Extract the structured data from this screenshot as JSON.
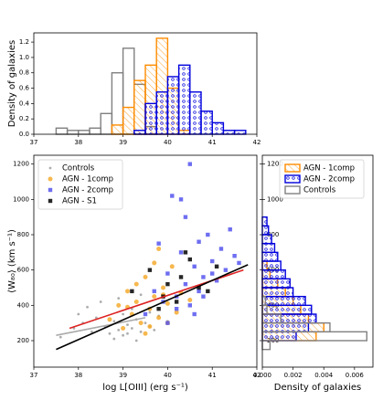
{
  "chart_data": [
    {
      "type": "histogram",
      "orientation": "vertical",
      "ylabel": "Density of galaxies",
      "xlim": [
        37,
        42
      ],
      "xticks": [
        37,
        38,
        39,
        40,
        41,
        42
      ],
      "ylim": [
        0,
        1.32
      ],
      "yticks": [
        {
          "value": 0,
          "label": "0.0"
        },
        0.2,
        0.4,
        0.6,
        0.8,
        {
          "value": 1,
          "label": "1.0"
        },
        1.2
      ],
      "bins": [
        37.5,
        37.75,
        38,
        38.25,
        38.5,
        38.75,
        39,
        39.25,
        39.5,
        39.75,
        40,
        40.25,
        40.5,
        40.75,
        41,
        41.25,
        41.5,
        41.75
      ],
      "series": [
        {
          "color": "#808080",
          "hatch": "none",
          "values": [
            0.08,
            0.05,
            0.05,
            0.08,
            0.27,
            0.8,
            1.12,
            0.65,
            0.1,
            0,
            0,
            0,
            0,
            0,
            0,
            0,
            0
          ]
        },
        {
          "color": "#ff8c00",
          "hatch": "//",
          "values": [
            0,
            0,
            0,
            0,
            0,
            0.12,
            0.35,
            0.7,
            0.9,
            1.25,
            0.6,
            0.05,
            0,
            0,
            0,
            0,
            0
          ]
        },
        {
          "color": "#0000dd",
          "hatch": "o",
          "values": [
            0,
            0,
            0,
            0,
            0,
            0,
            0,
            0.05,
            0.4,
            0.55,
            0.75,
            0.9,
            0.55,
            0.3,
            0.15,
            0.05,
            0.05
          ]
        }
      ]
    },
    {
      "type": "scatter",
      "xlabel": "log L[OIII] (erg s⁻¹)",
      "ylabel": "⟨W₈₀⟩ (km s⁻¹)",
      "xlim": [
        37,
        42
      ],
      "xticks": [
        37,
        38,
        39,
        40,
        41,
        42
      ],
      "ylim": [
        50,
        1250
      ],
      "yticks": [
        200,
        400,
        600,
        800,
        1000,
        1200
      ],
      "legend": "upper left",
      "series": [
        {
          "name": "Controls",
          "color": "#999999",
          "marker": "dot",
          "x": [
            37.6,
            37.9,
            38.1,
            38.3,
            38.4,
            38.6,
            38.7,
            38.8,
            38.9,
            39.0,
            39.0,
            39.1,
            39.2,
            39.3,
            39.4,
            39.5,
            39.6,
            39.8,
            38.5,
            38.9,
            39.2,
            39.7,
            38.2,
            39.4,
            38.8,
            39.1,
            39.6,
            38.0,
            39.3,
            40.0
          ],
          "values": [
            220,
            270,
            300,
            250,
            330,
            280,
            240,
            310,
            260,
            230,
            350,
            290,
            270,
            320,
            250,
            300,
            280,
            340,
            420,
            440,
            380,
            260,
            390,
            460,
            210,
            240,
            360,
            350,
            200,
            310
          ]
        },
        {
          "name": "AGN - 1comp",
          "color": "#f5a623",
          "marker": "circle",
          "x": [
            38.7,
            38.9,
            39.0,
            39.1,
            39.2,
            39.3,
            39.4,
            39.5,
            39.6,
            39.7,
            39.8,
            39.9,
            40.0,
            40.1,
            40.2,
            39.5,
            39.8,
            39.3,
            40.3,
            39.6,
            39.1,
            40.0,
            39.7,
            39.9,
            40.5
          ],
          "values": [
            320,
            400,
            270,
            480,
            350,
            420,
            300,
            560,
            380,
            450,
            330,
            500,
            410,
            620,
            360,
            240,
            720,
            520,
            470,
            280,
            390,
            300,
            640,
            460,
            430
          ]
        },
        {
          "name": "AGN - 2comp",
          "color": "#5555ee",
          "marker": "square",
          "x": [
            39.5,
            39.7,
            39.9,
            40.0,
            40.1,
            40.2,
            40.3,
            40.4,
            40.5,
            40.6,
            40.7,
            40.8,
            40.9,
            41.0,
            41.1,
            41.2,
            41.3,
            41.5,
            41.6,
            40.2,
            40.5,
            40.8,
            39.8,
            40.0,
            40.4,
            40.6,
            41.0,
            40.3,
            40.7,
            41.4
          ],
          "values": [
            350,
            480,
            420,
            580,
            1020,
            450,
            700,
            520,
            1200,
            620,
            480,
            560,
            800,
            650,
            540,
            720,
            600,
            680,
            640,
            380,
            400,
            450,
            750,
            300,
            900,
            350,
            580,
            1000,
            760,
            830
          ]
        },
        {
          "name": "AGN - S1",
          "color": "#000000",
          "marker": "square",
          "x": [
            39.2,
            39.6,
            39.9,
            40.0,
            40.2,
            40.3,
            40.5,
            40.7,
            40.9,
            41.1,
            39.8,
            40.4
          ],
          "values": [
            480,
            600,
            450,
            520,
            420,
            560,
            660,
            500,
            480,
            620,
            380,
            700
          ]
        }
      ],
      "lines": [
        {
          "color": "#aaaaaa",
          "x": [
            37.5,
            39.5
          ],
          "values": [
            230,
            330
          ]
        },
        {
          "color": "#dd2222",
          "x": [
            37.8,
            41.7
          ],
          "values": [
            270,
            600
          ]
        },
        {
          "color": "#000000",
          "x": [
            37.5,
            41.8
          ],
          "values": [
            150,
            630
          ]
        }
      ]
    },
    {
      "type": "histogram",
      "orientation": "horizontal",
      "xlabel": "Density of galaxies",
      "xlim": [
        0,
        0.0072
      ],
      "xticks": [
        {
          "value": 0,
          "label": "0.000"
        },
        {
          "value": 0.002,
          "label": "0.002"
        },
        {
          "value": 0.004,
          "label": "0.004"
        },
        {
          "value": 0.006,
          "label": "0.006"
        }
      ],
      "ylim": [
        50,
        1250
      ],
      "yticks": [
        200,
        400,
        600,
        800,
        1000,
        1200
      ],
      "legend": "upper right",
      "bins": [
        150,
        200,
        250,
        300,
        350,
        400,
        450,
        500,
        550,
        600,
        650,
        700,
        750,
        800,
        850,
        900
      ],
      "series": [
        {
          "name": "AGN - 1comp",
          "color": "#ff8c00",
          "hatch": "//",
          "values": [
            0,
            0.0035,
            0.004,
            0.003,
            0.0025,
            0.002,
            0.0015,
            0.001,
            0.0005,
            0.0003,
            0,
            0,
            0,
            0,
            0
          ]
        },
        {
          "name": "AGN - 2comp",
          "color": "#0000dd",
          "hatch": "o",
          "values": [
            0,
            0.0022,
            0.003,
            0.0035,
            0.0032,
            0.0028,
            0.002,
            0.0018,
            0.0015,
            0.0012,
            0.001,
            0.0008,
            0.0006,
            0.0004,
            0.0003
          ]
        },
        {
          "name": "Controls",
          "color": "#808080",
          "hatch": "none",
          "values": [
            0.0005,
            0.0068,
            0.0044,
            0.0012,
            0.0003,
            0.0002,
            0,
            0,
            0,
            0,
            0,
            0,
            0,
            0,
            0
          ]
        }
      ]
    }
  ]
}
